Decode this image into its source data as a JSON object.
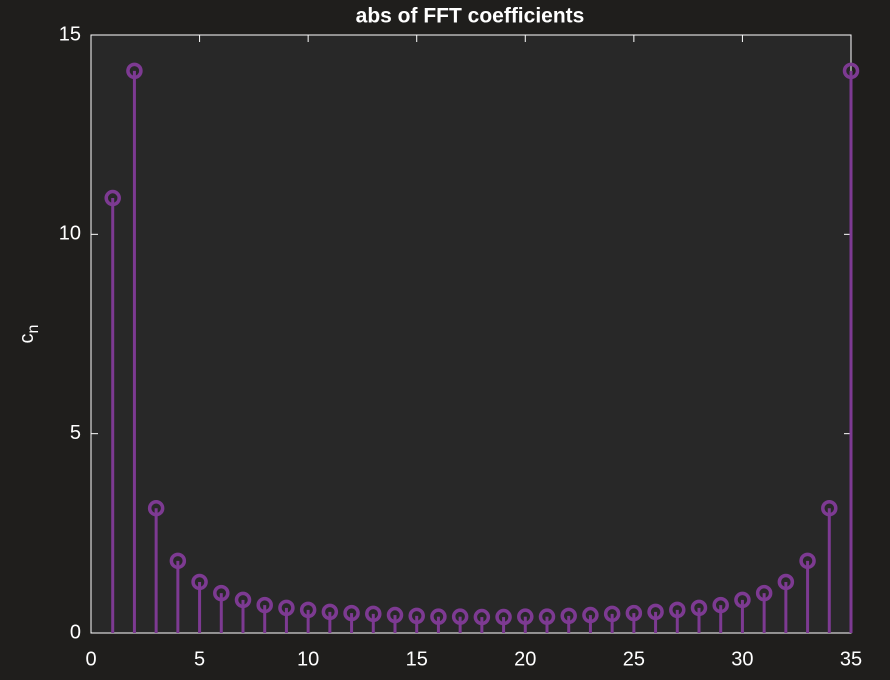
{
  "chart_data": {
    "type": "stem",
    "title": "abs of FFT coefficients",
    "ylabel": "c",
    "ylabel_subscript": "n",
    "color": "#7d3a92",
    "x": [
      1,
      2,
      3,
      4,
      5,
      6,
      7,
      8,
      9,
      10,
      11,
      12,
      13,
      14,
      15,
      16,
      17,
      18,
      19,
      20,
      21,
      22,
      23,
      24,
      25,
      26,
      27,
      28,
      29,
      30,
      31,
      32,
      33,
      34,
      35
    ],
    "values": [
      10.91,
      14.1,
      3.13,
      1.81,
      1.28,
      1.0,
      0.83,
      0.7,
      0.63,
      0.58,
      0.53,
      0.5,
      0.48,
      0.45,
      0.43,
      0.41,
      0.41,
      0.4,
      0.4,
      0.41,
      0.41,
      0.43,
      0.45,
      0.48,
      0.5,
      0.53,
      0.58,
      0.63,
      0.7,
      0.83,
      1.0,
      1.28,
      1.81,
      3.13,
      14.1
    ],
    "xlim": [
      0,
      35
    ],
    "xticks": [
      0,
      5,
      10,
      15,
      20,
      25,
      30,
      35
    ],
    "ylim": [
      0,
      15
    ],
    "yticks": [
      0,
      5,
      10,
      15
    ]
  }
}
